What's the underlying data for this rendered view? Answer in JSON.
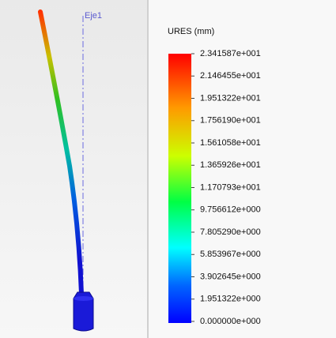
{
  "model": {
    "axis_label": "Eje1"
  },
  "legend": {
    "title": "URES (mm)",
    "labels": [
      "2.341587e+001",
      "2.146455e+001",
      "1.951322e+001",
      "1.756190e+001",
      "1.561058e+001",
      "1.365926e+001",
      "1.170793e+001",
      "9.756612e+000",
      "7.805290e+000",
      "5.853967e+000",
      "3.902645e+000",
      "1.951322e+000",
      "0.000000e+000"
    ]
  }
}
